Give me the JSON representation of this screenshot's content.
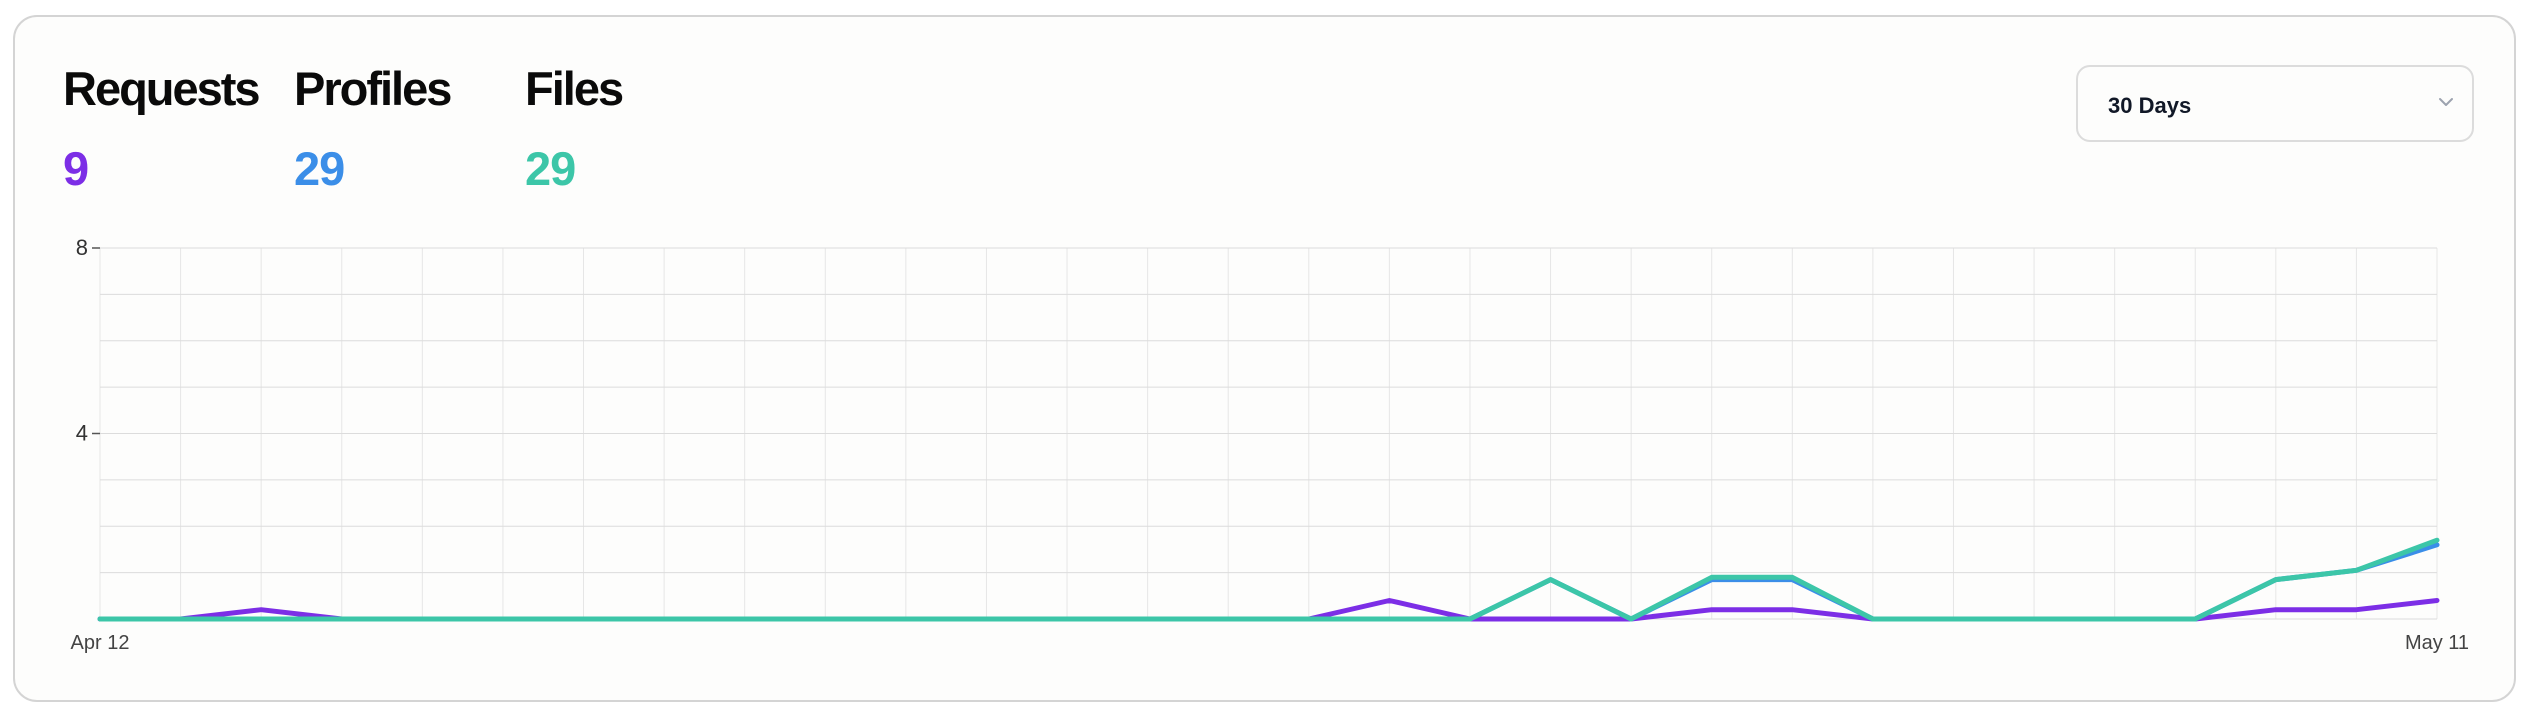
{
  "stats": [
    {
      "label": "Requests",
      "value": "9",
      "color": "#7c2ee6"
    },
    {
      "label": "Profiles",
      "value": "29",
      "color": "#3b8ee8"
    },
    {
      "label": "Files",
      "value": "29",
      "color": "#3cc6a8"
    }
  ],
  "range_select": {
    "selected": "30 Days",
    "icon": "chevron-down-icon"
  },
  "chart_data": {
    "type": "line",
    "x": [
      "Apr 12",
      "Apr 13",
      "Apr 14",
      "Apr 15",
      "Apr 16",
      "Apr 17",
      "Apr 18",
      "Apr 19",
      "Apr 20",
      "Apr 21",
      "Apr 22",
      "Apr 23",
      "Apr 24",
      "Apr 25",
      "Apr 26",
      "Apr 27",
      "Apr 28",
      "Apr 29",
      "Apr 30",
      "May 1",
      "May 2",
      "May 3",
      "May 4",
      "May 5",
      "May 6",
      "May 7",
      "May 8",
      "May 9",
      "May 10",
      "May 11"
    ],
    "x_tick_labels": [
      "Apr 12",
      "May 11"
    ],
    "y_ticks": [
      4,
      8
    ],
    "ylim": [
      0,
      8
    ],
    "grid": true,
    "series": [
      {
        "name": "Requests",
        "color": "#7c2ee6",
        "values": [
          0,
          0,
          0.2,
          0,
          0,
          0,
          0,
          0,
          0,
          0,
          0,
          0,
          0,
          0,
          0,
          0,
          0.4,
          0,
          0,
          0,
          0.2,
          0.2,
          0,
          0,
          0,
          0,
          0,
          0.2,
          0.2,
          0.4
        ]
      },
      {
        "name": "Profiles",
        "color": "#3b8ee8",
        "values": [
          0,
          0,
          0,
          0,
          0,
          0,
          0,
          0,
          0,
          0,
          0,
          0,
          0,
          0,
          0,
          0,
          0,
          0,
          0.85,
          0,
          0.85,
          0.85,
          0,
          0,
          0,
          0,
          0,
          0.85,
          1.05,
          1.6
        ]
      },
      {
        "name": "Files",
        "color": "#3cc6a8",
        "values": [
          0,
          0,
          0,
          0,
          0,
          0,
          0,
          0,
          0,
          0,
          0,
          0,
          0,
          0,
          0,
          0,
          0,
          0,
          0.85,
          0,
          0.9,
          0.9,
          0,
          0,
          0,
          0,
          0,
          0.85,
          1.05,
          1.7
        ]
      }
    ]
  }
}
